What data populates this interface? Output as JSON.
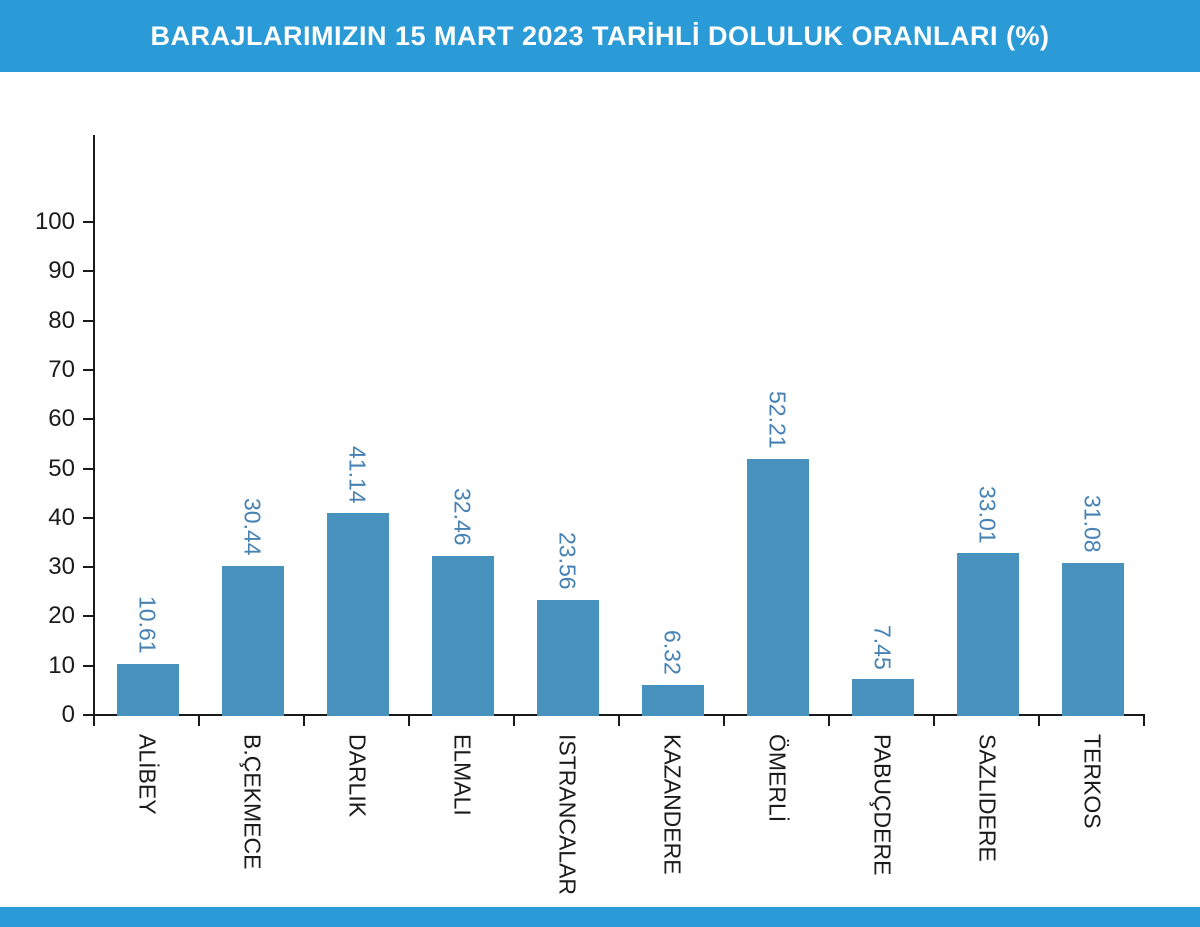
{
  "header": {
    "title": "BARAJLARIMIZIN 15 MART 2023 TARİHLİ DOLULUK ORANLARI (%)"
  },
  "colors": {
    "header_bg": "#2B9BD7",
    "footer_bg": "#2B9BD7",
    "background": "#FFFFFF",
    "bar": "#4793BE",
    "value_label": "#4682B4",
    "axis": "#1A1A1A",
    "tick_label": "#1B1B1B",
    "category_label": "#1B1B1B"
  },
  "chart_data": {
    "type": "bar",
    "title": "BARAJLARIMIZIN 15 MART 2023 TARİHLİ DOLULUK ORANLARI (%)",
    "categories": [
      "ALİBEY",
      "B.ÇEKMECE",
      "DARLIK",
      "ELMALI",
      "ISTRANCALAR",
      "KAZANDERE",
      "ÖMERLİ",
      "PABUÇDERE",
      "SAZLIDERE",
      "TERKOS"
    ],
    "values": [
      10.61,
      30.44,
      41.14,
      32.46,
      23.56,
      6.32,
      52.21,
      7.45,
      33.01,
      31.08
    ],
    "value_labels": [
      "10.61",
      "30.44",
      "41.14",
      "32.46",
      "23.56",
      "6.32",
      "52.21",
      "7.45",
      "33.01",
      "31.08"
    ],
    "xlabel": "",
    "ylabel": "",
    "ylim": [
      0,
      100
    ],
    "yticks": [
      0,
      10,
      20,
      30,
      40,
      50,
      60,
      70,
      80,
      90,
      100
    ],
    "grid": false,
    "legend": "none",
    "bar_label_rotation": "vertical-top-to-bottom",
    "category_label_rotation": "vertical-top-to-bottom"
  }
}
